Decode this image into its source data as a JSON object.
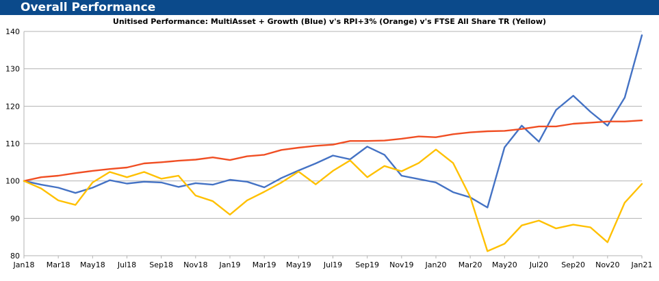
{
  "header": {
    "title": "Overall Performance",
    "background_color": "#0b4a8b"
  },
  "chart_data": {
    "type": "line",
    "title": "Unitised Performance: MultiAsset + Growth (Blue)  v's  RPI+3% (Orange) v's FTSE All Share TR (Yellow)",
    "xlabel": "",
    "ylabel": "",
    "ylim": [
      80,
      140
    ],
    "yticks": [
      80,
      90,
      100,
      110,
      120,
      130,
      140
    ],
    "x": [
      "Jan18",
      "Feb18",
      "Mar18",
      "Apr18",
      "May18",
      "Jun18",
      "Jul18",
      "Aug18",
      "Sep18",
      "Oct18",
      "Nov18",
      "Dec18",
      "Jan19",
      "Feb19",
      "Mar19",
      "Apr19",
      "May19",
      "Jun19",
      "Jul19",
      "Aug19",
      "Sep19",
      "Oct19",
      "Nov19",
      "Dec19",
      "Jan20",
      "Feb20",
      "Mar20",
      "Apr20",
      "May20",
      "Jun20",
      "Jul20",
      "Aug20",
      "Sep20",
      "Oct20",
      "Nov20",
      "Dec20",
      "Jan21"
    ],
    "xticklabels": [
      "Jan18",
      "Mar18",
      "May18",
      "Jul18",
      "Sep18",
      "Nov18",
      "Jan19",
      "Mar19",
      "May19",
      "Jul19",
      "Sep19",
      "Nov19",
      "Jan20",
      "Mar20",
      "May20",
      "Jul20",
      "Sep20",
      "Nov20",
      "Jan21"
    ],
    "grid": true,
    "legend": "none",
    "series": [
      {
        "color": "#4472c4",
        "values": [
          100,
          99,
          98.2,
          96.8,
          98.2,
          100.2,
          99.3,
          99.8,
          99.6,
          98.4,
          99.4,
          99.0,
          100.3,
          99.8,
          98.3,
          100.8,
          102.8,
          104.7,
          106.8,
          105.8,
          109.2,
          107.0,
          101.4,
          100.5,
          99.6,
          97.0,
          95.6,
          92.9,
          109.0,
          114.8,
          110.5,
          119.0,
          122.8,
          118.5,
          114.8,
          122.3,
          139.0
        ]
      },
      {
        "color": "#f04e23",
        "values": [
          100,
          101.0,
          101.4,
          102.1,
          102.7,
          103.2,
          103.6,
          104.7,
          105.0,
          105.4,
          105.7,
          106.3,
          105.6,
          106.6,
          107.0,
          108.3,
          108.9,
          109.4,
          109.7,
          110.7,
          110.7,
          110.8,
          111.3,
          111.9,
          111.7,
          112.5,
          113.0,
          113.3,
          113.4,
          113.9,
          114.6,
          114.6,
          115.3,
          115.6,
          115.9,
          115.9,
          116.2
        ]
      },
      {
        "color": "#ffc000",
        "values": [
          100,
          98.0,
          94.8,
          93.6,
          99.6,
          102.4,
          101.0,
          102.4,
          100.6,
          101.4,
          96.1,
          94.6,
          91.0,
          94.8,
          97.1,
          99.6,
          102.5,
          99.1,
          102.7,
          105.5,
          101.0,
          104.0,
          102.6,
          104.8,
          108.4,
          104.8,
          95.7,
          81.2,
          83.2,
          88.1,
          89.4,
          87.3,
          88.3,
          87.6,
          83.6,
          94.2,
          99.2
        ]
      }
    ]
  }
}
